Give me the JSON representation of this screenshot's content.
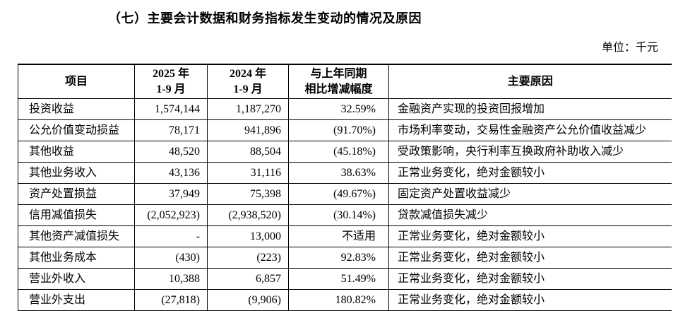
{
  "page": {
    "section_title": "（七）主要会计数据和财务指标发生变动的情况及原因",
    "unit_label": "单位：千元"
  },
  "table": {
    "headers": {
      "item": "项目",
      "y2025_line1": "2025 年",
      "y2025_line2": "1-9 月",
      "y2024_line1": "2024 年",
      "y2024_line2": "1-9 月",
      "change_line1": "与上年同期",
      "change_line2": "相比增减幅度",
      "reason": "主要原因"
    },
    "rows": [
      {
        "item": "投资收益",
        "v2025": "1,574,144",
        "v2024": "1,187,270",
        "change": "32.59%",
        "reason": "金融资产实现的投资回报增加"
      },
      {
        "item": "公允价值变动损益",
        "v2025": "78,171",
        "v2024": "941,896",
        "change": "(91.70%)",
        "reason": "市场利率变动，交易性金融资产公允价值收益减少"
      },
      {
        "item": "其他收益",
        "v2025": "48,520",
        "v2024": "88,504",
        "change": "(45.18%)",
        "reason": "受政策影响，央行利率互换政府补助收入减少"
      },
      {
        "item": "其他业务收入",
        "v2025": "43,136",
        "v2024": "31,116",
        "change": "38.63%",
        "reason": "正常业务变化，绝对金额较小"
      },
      {
        "item": "资产处置损益",
        "v2025": "37,949",
        "v2024": "75,398",
        "change": "(49.67%)",
        "reason": "固定资产处置收益减少"
      },
      {
        "item": "信用减值损失",
        "v2025": "(2,052,923)",
        "v2024": "(2,938,520)",
        "change": "(30.14%)",
        "reason": "贷款减值损失减少"
      },
      {
        "item": "其他资产减值损失",
        "v2025": "-",
        "v2024": "13,000",
        "change": "不适用",
        "reason": "正常业务变化，绝对金额较小"
      },
      {
        "item": "其他业务成本",
        "v2025": "(430)",
        "v2024": "(223)",
        "change": "92.83%",
        "reason": "正常业务变化，绝对金额较小"
      },
      {
        "item": "营业外收入",
        "v2025": "10,388",
        "v2024": "6,857",
        "change": "51.49%",
        "reason": "正常业务变化，绝对金额较小"
      },
      {
        "item": "营业外支出",
        "v2025": "(27,818)",
        "v2024": "(9,906)",
        "change": "180.82%",
        "reason": "正常业务变化，绝对金额较小"
      }
    ]
  }
}
